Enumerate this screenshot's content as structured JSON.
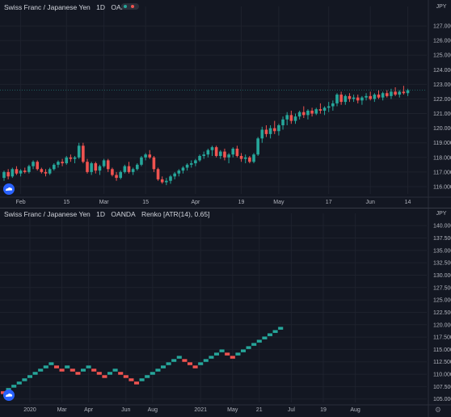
{
  "theme": {
    "background": "#131722",
    "up_color": "#26a69a",
    "down_color": "#ef5350",
    "text_color": "#b2b5be",
    "grid_color": "#1e222d"
  },
  "icons": {
    "logo": "tv-cloud-logo-icon",
    "settings": "gear-icon"
  },
  "chart_data": [
    {
      "type": "candlestick",
      "title": "Swiss Franc / Japanese Yen",
      "interval": "1D",
      "exchange": "OANDA",
      "currency_label": "JPY",
      "ylim": [
        115.5,
        128.0
      ],
      "y_ticks": [
        "116.000",
        "117.000",
        "118.000",
        "119.000",
        "120.000",
        "121.000",
        "122.000",
        "123.000",
        "124.000",
        "125.000",
        "126.000",
        "127.000"
      ],
      "x_ticks": [
        {
          "label": "Feb",
          "index": 4
        },
        {
          "label": "15",
          "index": 15
        },
        {
          "label": "Mar",
          "index": 24
        },
        {
          "label": "15",
          "index": 34
        },
        {
          "label": "Apr",
          "index": 46
        },
        {
          "label": "19",
          "index": 57
        },
        {
          "label": "May",
          "index": 66
        },
        {
          "label": "17",
          "index": 78
        },
        {
          "label": "Jun",
          "index": 88
        },
        {
          "label": "14",
          "index": 97
        }
      ],
      "candles": [
        [
          116.6,
          117.1,
          116.4,
          117.0
        ],
        [
          117.0,
          117.2,
          116.5,
          116.7
        ],
        [
          116.7,
          117.3,
          116.6,
          117.2
        ],
        [
          117.2,
          117.4,
          116.8,
          116.9
        ],
        [
          116.9,
          117.2,
          116.7,
          117.1
        ],
        [
          117.1,
          117.3,
          116.9,
          117.0
        ],
        [
          117.0,
          117.5,
          116.9,
          117.4
        ],
        [
          117.4,
          117.8,
          117.2,
          117.7
        ],
        [
          117.7,
          117.8,
          117.1,
          117.2
        ],
        [
          117.2,
          117.3,
          116.9,
          117.0
        ],
        [
          117.0,
          117.2,
          116.7,
          116.9
        ],
        [
          116.9,
          117.3,
          116.8,
          117.2
        ],
        [
          117.2,
          117.6,
          117.1,
          117.5
        ],
        [
          117.5,
          117.8,
          117.3,
          117.7
        ],
        [
          117.7,
          117.9,
          117.4,
          117.6
        ],
        [
          117.6,
          118.1,
          117.5,
          118.0
        ],
        [
          118.0,
          118.2,
          117.7,
          117.9
        ],
        [
          117.9,
          118.1,
          117.6,
          118.0
        ],
        [
          118.0,
          119.0,
          117.9,
          118.8
        ],
        [
          118.8,
          119.0,
          117.6,
          117.7
        ],
        [
          117.7,
          117.9,
          116.9,
          117.0
        ],
        [
          117.0,
          117.7,
          116.8,
          117.6
        ],
        [
          117.6,
          117.7,
          116.9,
          117.1
        ],
        [
          117.1,
          117.5,
          116.8,
          117.4
        ],
        [
          117.4,
          117.9,
          117.3,
          117.8
        ],
        [
          117.8,
          117.9,
          117.0,
          117.2
        ],
        [
          117.2,
          117.3,
          116.7,
          116.8
        ],
        [
          116.8,
          117.0,
          116.4,
          116.6
        ],
        [
          116.6,
          117.1,
          116.5,
          117.0
        ],
        [
          117.0,
          117.5,
          116.9,
          117.4
        ],
        [
          117.4,
          117.7,
          116.9,
          117.0
        ],
        [
          117.0,
          117.3,
          116.8,
          117.2
        ],
        [
          117.2,
          117.6,
          117.1,
          117.5
        ],
        [
          117.5,
          118.1,
          117.4,
          118.0
        ],
        [
          118.0,
          118.3,
          117.8,
          118.2
        ],
        [
          118.2,
          118.5,
          117.9,
          118.0
        ],
        [
          118.0,
          118.1,
          117.0,
          117.2
        ],
        [
          117.2,
          117.3,
          116.4,
          116.5
        ],
        [
          116.5,
          116.7,
          116.2,
          116.3
        ],
        [
          116.3,
          116.6,
          116.1,
          116.4
        ],
        [
          116.4,
          116.8,
          116.2,
          116.7
        ],
        [
          116.7,
          117.0,
          116.5,
          116.9
        ],
        [
          116.9,
          117.2,
          116.7,
          117.1
        ],
        [
          117.1,
          117.4,
          116.9,
          117.3
        ],
        [
          117.3,
          117.6,
          117.1,
          117.5
        ],
        [
          117.5,
          117.8,
          117.3,
          117.6
        ],
        [
          117.6,
          117.9,
          117.4,
          117.8
        ],
        [
          117.8,
          118.2,
          117.7,
          118.1
        ],
        [
          118.1,
          118.4,
          117.9,
          118.2
        ],
        [
          118.2,
          118.6,
          118.0,
          118.5
        ],
        [
          118.5,
          118.8,
          118.1,
          118.7
        ],
        [
          118.7,
          118.8,
          118.0,
          118.1
        ],
        [
          118.1,
          118.5,
          117.9,
          118.4
        ],
        [
          118.4,
          118.6,
          117.8,
          118.0
        ],
        [
          118.0,
          118.3,
          117.6,
          118.2
        ],
        [
          118.2,
          118.7,
          118.0,
          118.6
        ],
        [
          118.6,
          118.8,
          118.0,
          118.1
        ],
        [
          118.1,
          118.3,
          117.7,
          117.9
        ],
        [
          117.9,
          118.2,
          117.6,
          118.0
        ],
        [
          118.0,
          118.1,
          117.6,
          117.7
        ],
        [
          117.7,
          118.3,
          117.6,
          118.2
        ],
        [
          118.2,
          119.4,
          118.1,
          119.3
        ],
        [
          119.3,
          120.1,
          119.0,
          119.9
        ],
        [
          119.9,
          120.2,
          119.4,
          119.6
        ],
        [
          119.6,
          120.2,
          119.3,
          120.0
        ],
        [
          120.0,
          120.5,
          119.6,
          119.8
        ],
        [
          119.8,
          120.3,
          119.5,
          120.2
        ],
        [
          120.2,
          120.8,
          119.9,
          120.6
        ],
        [
          120.6,
          121.1,
          120.2,
          120.9
        ],
        [
          120.9,
          121.2,
          120.3,
          120.5
        ],
        [
          120.5,
          121.0,
          120.3,
          120.8
        ],
        [
          120.8,
          121.2,
          120.6,
          121.1
        ],
        [
          121.1,
          121.5,
          120.7,
          120.9
        ],
        [
          120.9,
          121.3,
          120.6,
          121.2
        ],
        [
          121.2,
          121.4,
          120.8,
          121.0
        ],
        [
          121.0,
          121.4,
          120.9,
          121.3
        ],
        [
          121.3,
          121.7,
          121.0,
          121.2
        ],
        [
          121.2,
          121.5,
          120.9,
          121.4
        ],
        [
          121.4,
          121.8,
          121.1,
          121.5
        ],
        [
          121.5,
          121.9,
          121.2,
          121.7
        ],
        [
          121.7,
          122.4,
          121.5,
          122.3
        ],
        [
          122.3,
          122.5,
          121.6,
          121.8
        ],
        [
          121.8,
          122.3,
          121.6,
          122.2
        ],
        [
          122.2,
          122.4,
          121.8,
          122.0
        ],
        [
          122.0,
          122.3,
          121.8,
          122.1
        ],
        [
          122.1,
          122.3,
          121.7,
          121.9
        ],
        [
          121.9,
          122.2,
          121.6,
          122.1
        ],
        [
          122.1,
          122.4,
          121.9,
          122.2
        ],
        [
          122.2,
          122.5,
          121.9,
          122.0
        ],
        [
          122.0,
          122.4,
          121.8,
          122.3
        ],
        [
          122.3,
          122.6,
          122.0,
          122.1
        ],
        [
          122.1,
          122.5,
          121.9,
          122.4
        ],
        [
          122.4,
          122.6,
          122.1,
          122.2
        ],
        [
          122.2,
          122.7,
          122.0,
          122.5
        ],
        [
          122.5,
          122.8,
          122.2,
          122.3
        ],
        [
          122.3,
          122.6,
          122.1,
          122.5
        ],
        [
          122.5,
          122.9,
          122.3,
          122.4
        ],
        [
          122.4,
          122.7,
          122.2,
          122.6
        ]
      ]
    },
    {
      "type": "renko",
      "title": "Swiss Franc / Japanese Yen",
      "interval": "1D",
      "exchange": "OANDA",
      "style": "Renko [ATR(14), 0.65]",
      "currency_label": "JPY",
      "box_size": 0.65,
      "start": 106.6,
      "ylim": [
        104.3,
        141.5
      ],
      "y_ticks": [
        "105.000",
        "107.500",
        "110.000",
        "112.500",
        "115.000",
        "117.500",
        "120.000",
        "122.500",
        "125.000",
        "127.500",
        "130.000",
        "132.500",
        "135.000",
        "137.500",
        "140.000"
      ],
      "x_ticks": [
        {
          "label": "2020",
          "index": 5
        },
        {
          "label": "Mar",
          "index": 11
        },
        {
          "label": "Apr",
          "index": 16
        },
        {
          "label": "Jun",
          "index": 23
        },
        {
          "label": "Aug",
          "index": 28
        },
        {
          "label": "2021",
          "index": 37
        },
        {
          "label": "May",
          "index": 43
        },
        {
          "label": "21",
          "index": 48
        },
        {
          "label": "Jul",
          "index": 54
        },
        {
          "label": "19",
          "index": 60
        },
        {
          "label": "Aug",
          "index": 66
        }
      ],
      "bricks": [
        -1,
        1,
        1,
        1,
        1,
        1,
        1,
        1,
        1,
        1,
        -1,
        -1,
        1,
        -1,
        -1,
        1,
        1,
        -1,
        -1,
        -1,
        1,
        1,
        -1,
        -1,
        -1,
        -1,
        1,
        1,
        1,
        1,
        1,
        1,
        1,
        1,
        -1,
        -1,
        -1,
        1,
        1,
        1,
        1,
        1,
        -1,
        -1,
        1,
        1,
        1,
        1,
        1,
        1,
        1,
        1,
        1
      ],
      "bricks_x_offset": 0
    }
  ]
}
